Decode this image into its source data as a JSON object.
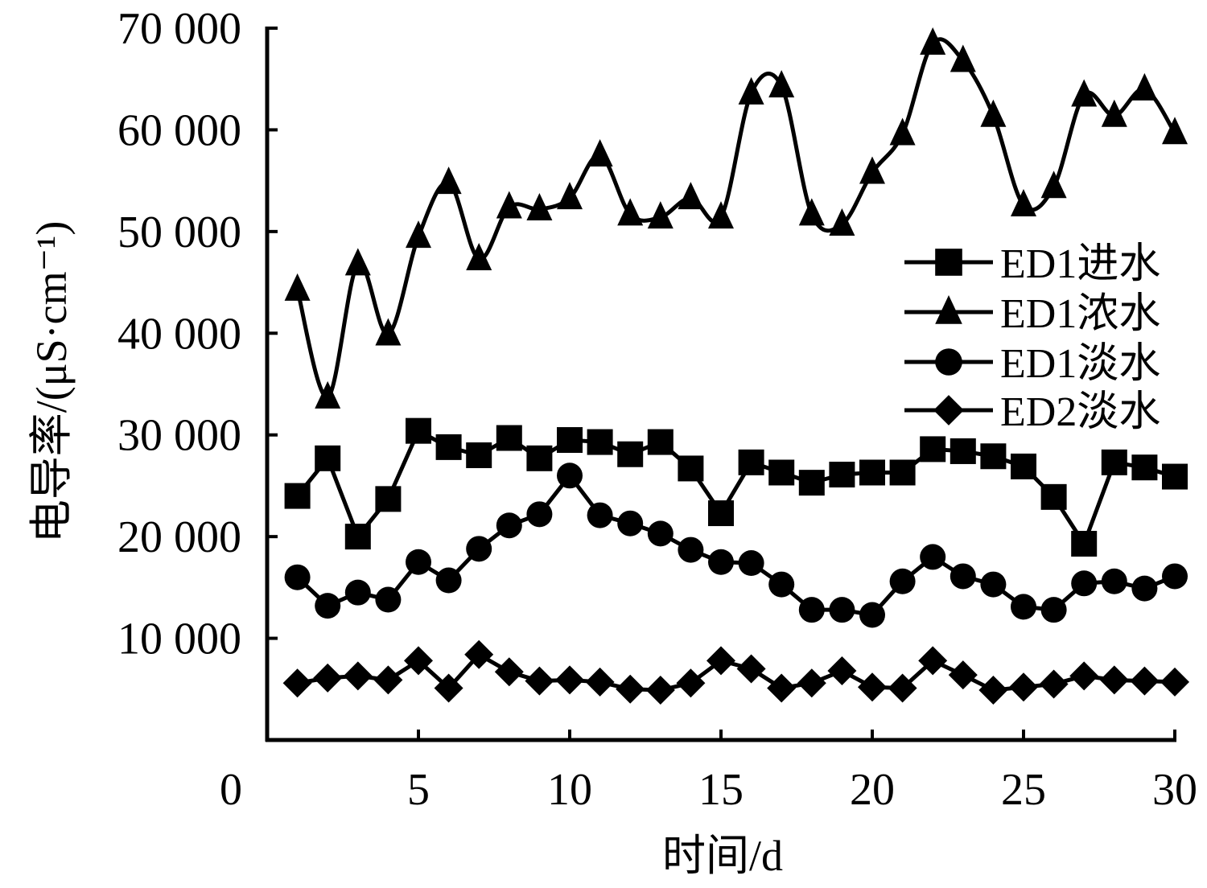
{
  "chart_data": {
    "type": "line",
    "title": "",
    "xlabel": "时间/d",
    "ylabel": "电导率/(μS·cm⁻¹)",
    "xlim": [
      0,
      30
    ],
    "ylim": [
      0,
      70000
    ],
    "x_ticks": [
      0,
      5,
      10,
      15,
      20,
      25,
      30
    ],
    "x_tick_labels": [
      "0",
      "5",
      "10",
      "15",
      "20",
      "25",
      "30"
    ],
    "y_ticks": [
      10000,
      20000,
      30000,
      40000,
      50000,
      60000,
      70000
    ],
    "y_tick_labels": [
      "10 000",
      "20 000",
      "30 000",
      "40 000",
      "50 000",
      "60 000",
      "70 000"
    ],
    "grid": false,
    "legend_position": "right",
    "x": [
      1,
      2,
      3,
      4,
      5,
      6,
      7,
      8,
      9,
      10,
      11,
      12,
      13,
      14,
      15,
      16,
      17,
      18,
      19,
      20,
      21,
      22,
      23,
      24,
      25,
      26,
      27,
      28,
      29,
      30
    ],
    "series": [
      {
        "name": "ED1进水",
        "marker": "square",
        "smooth": false,
        "color": "#000000",
        "values": [
          24000,
          27700,
          20000,
          23700,
          30400,
          28800,
          28000,
          29700,
          27700,
          29500,
          29300,
          28100,
          29300,
          26700,
          22300,
          27300,
          26300,
          25300,
          26100,
          26300,
          26300,
          28600,
          28400,
          27900,
          26900,
          23900,
          19300,
          27300,
          26800,
          25900
        ]
      },
      {
        "name": "ED1浓水",
        "marker": "triangle",
        "smooth": true,
        "color": "#000000",
        "values": [
          44300,
          33700,
          46800,
          39900,
          49500,
          54800,
          47300,
          52400,
          52200,
          53300,
          57500,
          51700,
          51400,
          53300,
          51400,
          63600,
          64300,
          51700,
          50700,
          55800,
          59600,
          68500,
          66800,
          61400,
          52600,
          54400,
          63400,
          61400,
          64000,
          59700
        ]
      },
      {
        "name": "ED1淡水",
        "marker": "circle",
        "smooth": false,
        "color": "#000000",
        "values": [
          16000,
          13200,
          14500,
          13800,
          17500,
          15700,
          18800,
          21100,
          22200,
          26000,
          22100,
          21300,
          20300,
          18700,
          17500,
          17400,
          15300,
          12800,
          12800,
          12300,
          15600,
          18000,
          16100,
          15300,
          13100,
          12800,
          15400,
          15600,
          14900,
          16100
        ]
      },
      {
        "name": "ED2淡水",
        "marker": "diamond",
        "smooth": false,
        "color": "#000000",
        "values": [
          5600,
          6100,
          6300,
          5900,
          7800,
          5100,
          8400,
          6700,
          5800,
          5900,
          5700,
          5000,
          4900,
          5600,
          7800,
          7000,
          5100,
          5600,
          6800,
          5200,
          5100,
          7800,
          6400,
          4900,
          5200,
          5500,
          6300,
          5900,
          5800,
          5700
        ]
      }
    ]
  }
}
